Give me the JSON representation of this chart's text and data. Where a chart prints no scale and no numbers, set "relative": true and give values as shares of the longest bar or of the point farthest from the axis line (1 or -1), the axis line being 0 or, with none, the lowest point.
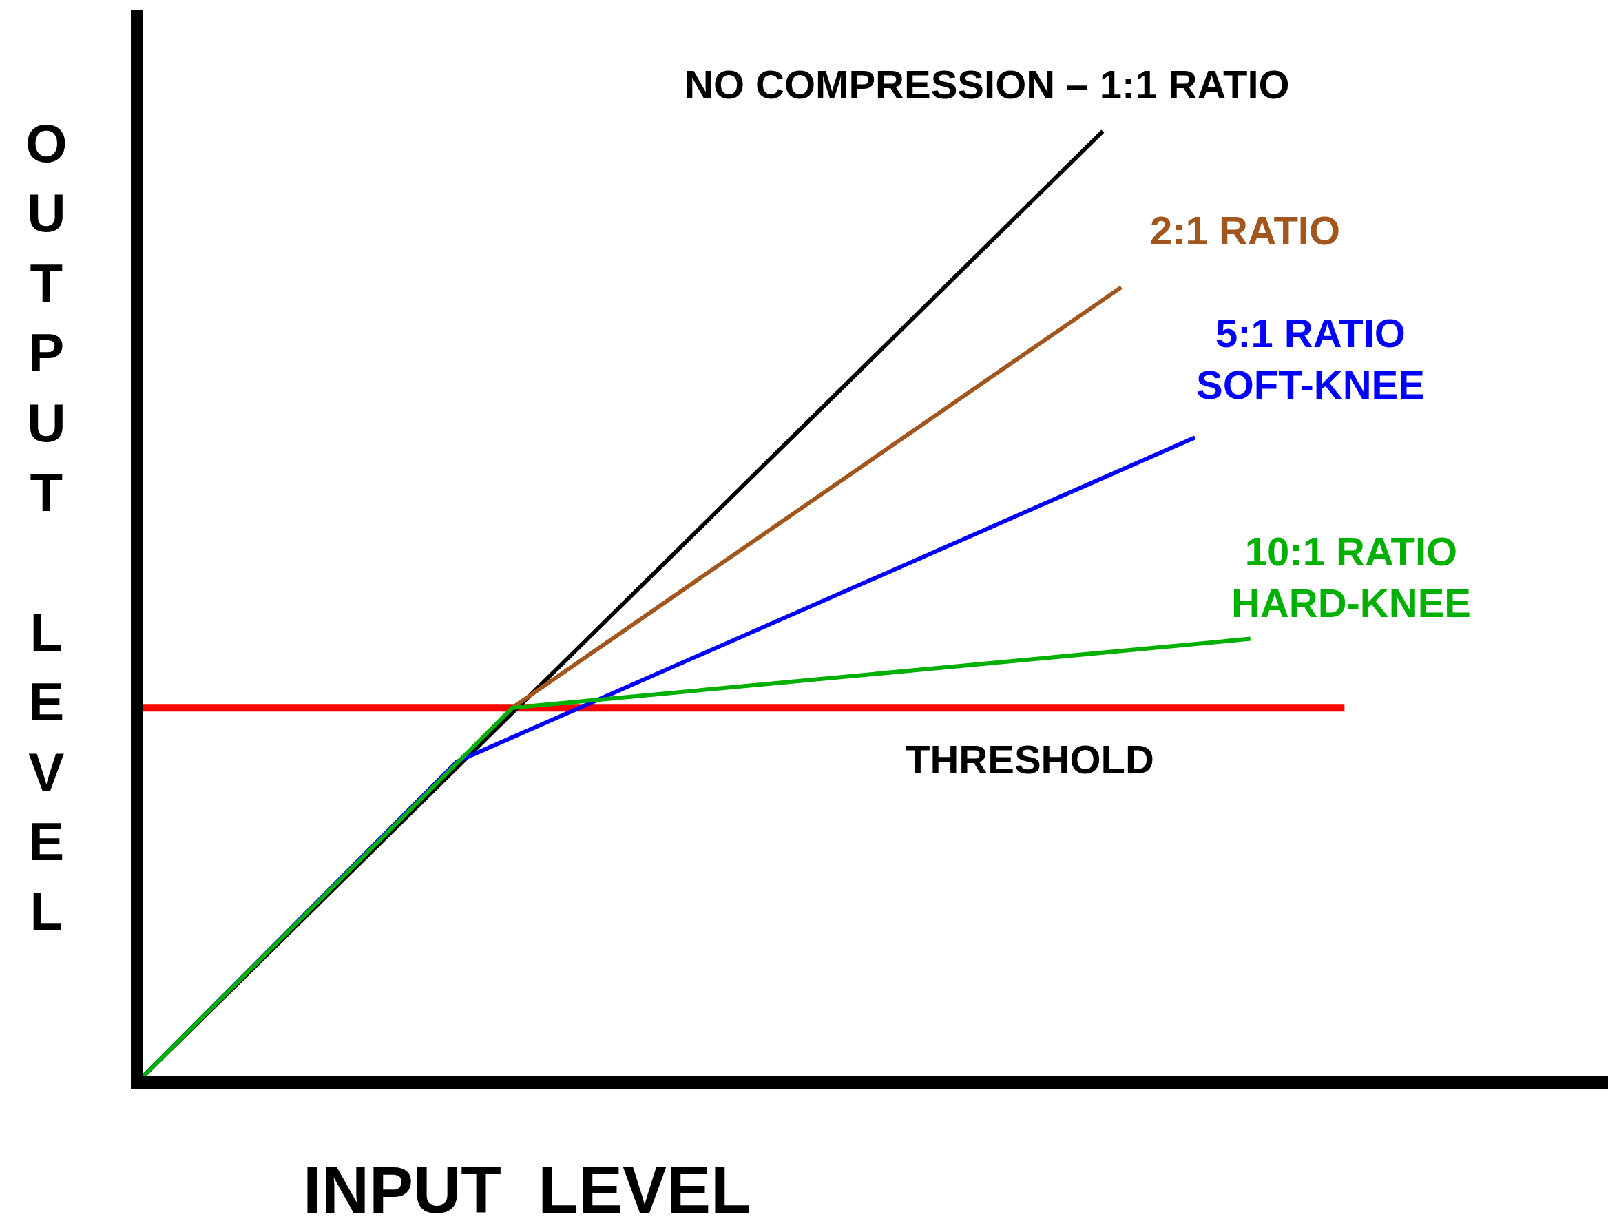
{
  "chart_data": {
    "type": "line",
    "relative": true,
    "categories": [
      null,
      null,
      null,
      null,
      null,
      null,
      null,
      null,
      null,
      null,
      null,
      null,
      null,
      null,
      null,
      null,
      null,
      null,
      null,
      null,
      null,
      null,
      null,
      null,
      null,
      null,
      null,
      null,
      null,
      null,
      null,
      null,
      null,
      null,
      null,
      null,
      null,
      null,
      null,
      null,
      null,
      null,
      null,
      null,
      null,
      null,
      null,
      null,
      null,
      null,
      null,
      null,
      null,
      null,
      null,
      null,
      null,
      null,
      null,
      null,
      null
    ],
    "xlabel": "INPUT  LEVEL",
    "ylabel": "OUTPUT LEVEL",
    "marker": "none",
    "line_style": "solid",
    "series": [
      {
        "name": "NO COMPRESSION – 1:1 RATIO",
        "color": "#000000",
        "values": [
          0,
          null,
          null,
          null,
          null,
          null,
          null,
          null,
          null,
          null,
          null,
          null,
          null,
          null,
          null,
          null,
          null,
          null,
          null,
          null,
          null,
          null,
          null,
          null,
          null,
          null,
          null,
          null,
          null,
          null,
          null,
          null,
          null,
          null,
          null,
          null,
          null,
          null,
          null,
          null,
          null,
          null,
          null,
          null,
          null,
          null,
          null,
          null,
          null,
          null,
          null,
          null,
          1,
          null,
          null,
          null,
          null,
          null,
          null,
          null,
          null
        ]
      },
      {
        "name": "2:1 RATIO",
        "color": "#a0561c",
        "values": [
          null,
          null,
          null,
          null,
          null,
          null,
          null,
          null,
          null,
          null,
          null,
          null,
          null,
          null,
          null,
          null,
          null,
          null,
          null,
          null,
          0.39,
          null,
          null,
          null,
          null,
          null,
          null,
          null,
          null,
          null,
          null,
          null,
          null,
          null,
          null,
          null,
          null,
          null,
          null,
          null,
          null,
          null,
          null,
          null,
          null,
          null,
          null,
          null,
          null,
          null,
          null,
          null,
          null,
          0.835,
          null,
          null,
          null,
          null,
          null,
          null,
          null
        ]
      },
      {
        "name": "5:1 RATIO\nSOFT-KNEE",
        "color": "#0000ff",
        "values": [
          0,
          null,
          null,
          null,
          null,
          null,
          null,
          null,
          null,
          null,
          null,
          null,
          null,
          null,
          null,
          null,
          null,
          0.333,
          null,
          null,
          null,
          null,
          null,
          null,
          null,
          null,
          null,
          null,
          null,
          null,
          null,
          null,
          null,
          null,
          null,
          null,
          null,
          null,
          null,
          null,
          null,
          null,
          null,
          null,
          null,
          null,
          null,
          null,
          null,
          null,
          null,
          null,
          null,
          null,
          null,
          null,
          null,
          0.676,
          null,
          null,
          null
        ]
      },
      {
        "name": "10:1 RATIO\nHARD-KNEE",
        "color": "#00b000",
        "values": [
          0,
          null,
          null,
          null,
          null,
          null,
          null,
          null,
          null,
          null,
          null,
          null,
          null,
          null,
          null,
          null,
          null,
          null,
          null,
          null,
          0.39,
          null,
          null,
          null,
          null,
          null,
          null,
          null,
          null,
          null,
          null,
          null,
          null,
          null,
          null,
          null,
          null,
          null,
          null,
          null,
          null,
          null,
          null,
          null,
          null,
          null,
          null,
          null,
          null,
          null,
          null,
          null,
          null,
          null,
          null,
          null,
          null,
          null,
          null,
          null,
          0.463
        ]
      }
    ],
    "ref_lines": [
      {
        "axis": "y",
        "value": 0.39,
        "label": "THRESHOLD",
        "color": "#ff0000"
      }
    ]
  }
}
